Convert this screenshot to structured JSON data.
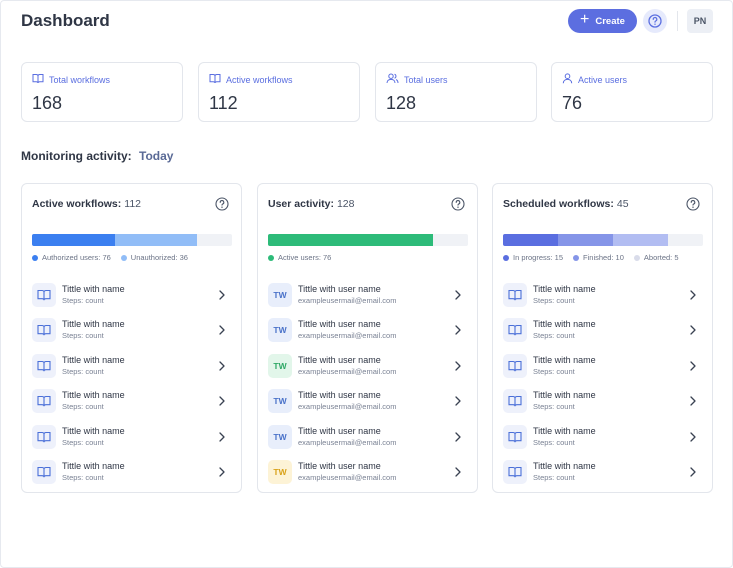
{
  "header": {
    "title": "Dashboard",
    "create_label": "Create",
    "avatar_initials": "PN"
  },
  "stats": [
    {
      "label": "Total workflows",
      "value": "168",
      "icon": "book-icon"
    },
    {
      "label": "Active workflows",
      "value": "112",
      "icon": "book-icon"
    },
    {
      "label": "Total users",
      "value": "128",
      "icon": "users-icon"
    },
    {
      "label": "Active users",
      "value": "76",
      "icon": "user-icon"
    }
  ],
  "monitoring": {
    "label": "Monitoring activity:",
    "period": "Today"
  },
  "panels": {
    "active_workflows": {
      "title": "Active workflows:",
      "count": "112",
      "bar": [
        {
          "fraction": 0.4125,
          "color": "#3b7ff0"
        },
        {
          "fraction": 0.4125,
          "color": "#91bdf7"
        }
      ],
      "legend": [
        {
          "label": "Authorized users: 76",
          "color": "#3b7ff0"
        },
        {
          "label": "Unauthorized: 36",
          "color": "#91bdf7"
        }
      ],
      "rows": [
        {
          "title": "Tittle with name",
          "sub": "Steps: count"
        },
        {
          "title": "Tittle with name",
          "sub": "Steps: count"
        },
        {
          "title": "Tittle with name",
          "sub": "Steps: count"
        },
        {
          "title": "Tittle with name",
          "sub": "Steps: count"
        },
        {
          "title": "Tittle with name",
          "sub": "Steps: count"
        },
        {
          "title": "Tittle with name",
          "sub": "Steps: count"
        }
      ]
    },
    "user_activity": {
      "title": "User activity:",
      "count": "128",
      "bar": [
        {
          "fraction": 0.825,
          "color": "#2dbb79"
        }
      ],
      "legend": [
        {
          "label": "Active users: 76",
          "color": "#2dbb79"
        }
      ],
      "rows": [
        {
          "initials": "TW",
          "title": "Tittle with user name",
          "sub": "exampleusermail@email.com",
          "color": "#4a72c9",
          "bg": "#e8eefb"
        },
        {
          "initials": "TW",
          "title": "Tittle with user name",
          "sub": "exampleusermail@email.com",
          "color": "#4a72c9",
          "bg": "#e8eefb"
        },
        {
          "initials": "TW",
          "title": "Tittle with user name",
          "sub": "exampleusermail@email.com",
          "color": "#2fa866",
          "bg": "#e2f6ea"
        },
        {
          "initials": "TW",
          "title": "Tittle with user name",
          "sub": "exampleusermail@email.com",
          "color": "#4a72c9",
          "bg": "#e8eefb"
        },
        {
          "initials": "TW",
          "title": "Tittle with user name",
          "sub": "exampleusermail@email.com",
          "color": "#4a72c9",
          "bg": "#e8eefb"
        },
        {
          "initials": "TW",
          "title": "Tittle with user name",
          "sub": "exampleusermail@email.com",
          "color": "#d9a21a",
          "bg": "#fdf3d6"
        }
      ]
    },
    "scheduled_workflows": {
      "title": "Scheduled workflows:",
      "count": "45",
      "bar": [
        {
          "fraction": 0.275,
          "color": "#5a6ee0"
        },
        {
          "fraction": 0.275,
          "color": "#8595e8"
        },
        {
          "fraction": 0.275,
          "color": "#b2bdf2"
        }
      ],
      "legend": [
        {
          "label": "In progress: 15",
          "color": "#5a6ee0"
        },
        {
          "label": "Finished: 10",
          "color": "#8595e8"
        },
        {
          "label": "Aborted: 5",
          "color": "#d9dcea"
        }
      ],
      "rows": [
        {
          "title": "Tittle with name",
          "sub": "Steps: count"
        },
        {
          "title": "Tittle with name",
          "sub": "Steps: count"
        },
        {
          "title": "Tittle with name",
          "sub": "Steps: count"
        },
        {
          "title": "Tittle with name",
          "sub": "Steps: count"
        },
        {
          "title": "Tittle with name",
          "sub": "Steps: count"
        },
        {
          "title": "Tittle with name",
          "sub": "Steps: count"
        }
      ]
    }
  }
}
